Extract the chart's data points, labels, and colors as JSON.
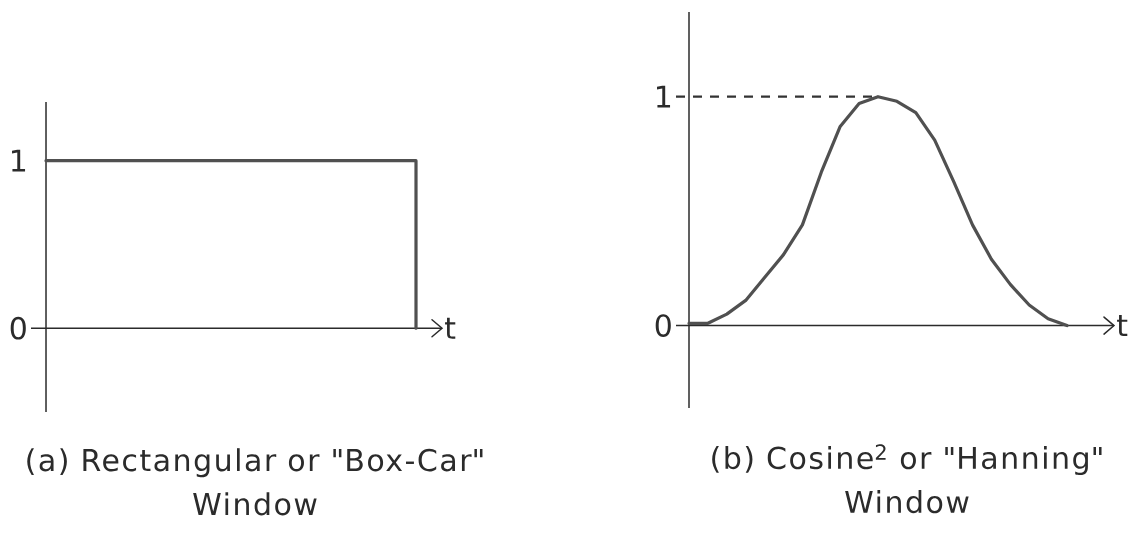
{
  "chart_data": [
    {
      "type": "step",
      "title": "(a) Rectangular or \"Box-Car\" Window",
      "xlabel": "t",
      "categories": [
        null,
        null
      ],
      "values": [
        1,
        0
      ],
      "color": "#505050",
      "ylim": [
        -0.5,
        1.35
      ],
      "yticks": [
        0,
        1
      ],
      "tick_labels": "y"
    },
    {
      "type": "line",
      "title": "(b) Cosine$^{2}$ or \"Hanning\" Window",
      "xlabel": "t",
      "categories": [
        null,
        null,
        null,
        null,
        null,
        null,
        null,
        null,
        null,
        null,
        null,
        null,
        null,
        null,
        null,
        null,
        null,
        null,
        null,
        null,
        null
      ],
      "values": [
        0.01,
        0.01,
        0.05,
        0.11,
        0.21,
        0.31,
        0.44,
        0.67,
        0.87,
        0.97,
        1,
        0.98,
        0.93,
        0.81,
        0.63,
        0.44,
        0.29,
        0.18,
        0.09,
        0.03,
        0
      ],
      "color": "#505050",
      "ref_lines": [
        {
          "axis": "y",
          "value": 1,
          "color": "#333333",
          "line_style": "dashed"
        }
      ],
      "ylim": [
        -0.36,
        1.37
      ],
      "yticks": [
        0,
        1
      ],
      "tick_labels": "y"
    }
  ]
}
